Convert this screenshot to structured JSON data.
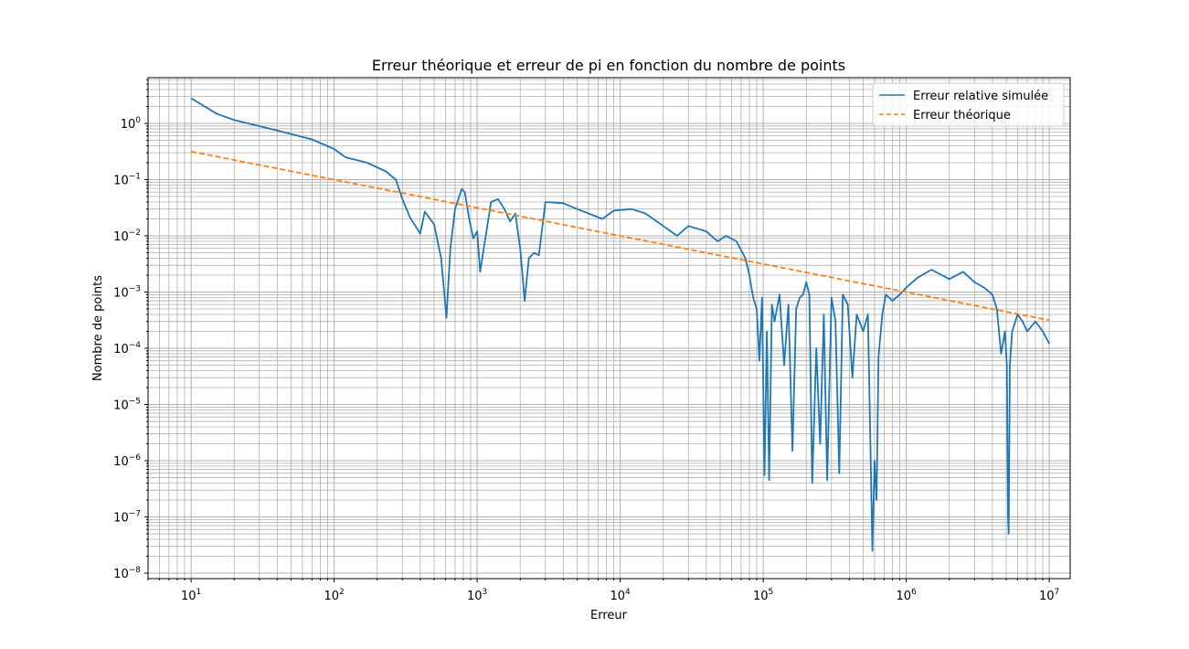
{
  "chart_data": {
    "type": "line",
    "title": "Erreur théorique et erreur de pi en fonction du nombre de points",
    "xlabel": "Erreur",
    "ylabel": "Nombre de points",
    "xscale": "log",
    "yscale": "log",
    "xlim": [
      5,
      14000000
    ],
    "ylim": [
      8e-09,
      6.5
    ],
    "grid": "major+minor",
    "legend_position": "upper-right",
    "x_ticks": [
      {
        "value": 10,
        "base": "10",
        "exp": "1"
      },
      {
        "value": 100,
        "base": "10",
        "exp": "2"
      },
      {
        "value": 1000,
        "base": "10",
        "exp": "3"
      },
      {
        "value": 10000,
        "base": "10",
        "exp": "4"
      },
      {
        "value": 100000,
        "base": "10",
        "exp": "5"
      },
      {
        "value": 1000000,
        "base": "10",
        "exp": "6"
      },
      {
        "value": 10000000,
        "base": "10",
        "exp": "7"
      }
    ],
    "y_ticks": [
      {
        "value": 1,
        "base": "10",
        "exp": "0"
      },
      {
        "value": 0.1,
        "base": "10",
        "exp": "−1"
      },
      {
        "value": 0.01,
        "base": "10",
        "exp": "−2"
      },
      {
        "value": 0.001,
        "base": "10",
        "exp": "−3"
      },
      {
        "value": 0.0001,
        "base": "10",
        "exp": "−4"
      },
      {
        "value": 1e-05,
        "base": "10",
        "exp": "−5"
      },
      {
        "value": 1e-06,
        "base": "10",
        "exp": "−6"
      },
      {
        "value": 1e-07,
        "base": "10",
        "exp": "−7"
      },
      {
        "value": 1e-08,
        "base": "10",
        "exp": "−8"
      }
    ],
    "series": [
      {
        "name": "Erreur relative simulée",
        "color": "#1f77b4",
        "style": "solid",
        "points": [
          [
            10,
            2.8
          ],
          [
            15,
            1.5
          ],
          [
            20,
            1.15
          ],
          [
            40,
            0.75
          ],
          [
            70,
            0.52
          ],
          [
            100,
            0.35
          ],
          [
            120,
            0.25
          ],
          [
            170,
            0.2
          ],
          [
            230,
            0.14
          ],
          [
            270,
            0.1
          ],
          [
            300,
            0.045
          ],
          [
            340,
            0.021
          ],
          [
            400,
            0.011
          ],
          [
            430,
            0.027
          ],
          [
            500,
            0.016
          ],
          [
            560,
            0.004
          ],
          [
            610,
            0.00035
          ],
          [
            650,
            0.006
          ],
          [
            700,
            0.03
          ],
          [
            780,
            0.068
          ],
          [
            820,
            0.06
          ],
          [
            880,
            0.02
          ],
          [
            940,
            0.009
          ],
          [
            1000,
            0.012
          ],
          [
            1050,
            0.0023
          ],
          [
            1100,
            0.005
          ],
          [
            1250,
            0.04
          ],
          [
            1400,
            0.045
          ],
          [
            1550,
            0.03
          ],
          [
            1700,
            0.018
          ],
          [
            1850,
            0.025
          ],
          [
            2000,
            0.006
          ],
          [
            2150,
            0.0007
          ],
          [
            2300,
            0.004
          ],
          [
            2500,
            0.005
          ],
          [
            2700,
            0.0045
          ],
          [
            3000,
            0.04
          ],
          [
            4000,
            0.038
          ],
          [
            5000,
            0.03
          ],
          [
            6000,
            0.025
          ],
          [
            7500,
            0.02
          ],
          [
            9000,
            0.028
          ],
          [
            12000,
            0.03
          ],
          [
            15000,
            0.025
          ],
          [
            20000,
            0.015
          ],
          [
            25000,
            0.01
          ],
          [
            30000,
            0.015
          ],
          [
            40000,
            0.012
          ],
          [
            48000,
            0.008
          ],
          [
            55000,
            0.01
          ],
          [
            65000,
            0.008
          ],
          [
            75000,
            0.004
          ],
          [
            80000,
            0.002
          ],
          [
            85000,
            0.0008
          ],
          [
            90000,
            0.0005
          ],
          [
            94000,
            6e-05
          ],
          [
            98000,
            0.0008
          ],
          [
            102000,
            5.5e-07
          ],
          [
            106000,
            0.0002
          ],
          [
            110000,
            4.5e-07
          ],
          [
            115000,
            0.0006
          ],
          [
            120000,
            0.0003
          ],
          [
            130000,
            0.0009
          ],
          [
            140000,
            5e-05
          ],
          [
            150000,
            0.0006
          ],
          [
            160000,
            1.5e-06
          ],
          [
            170000,
            0.0005
          ],
          [
            180000,
            0.0008
          ],
          [
            190000,
            0.0009
          ],
          [
            200000,
            0.0015
          ],
          [
            210000,
            0.0009
          ],
          [
            220000,
            4e-07
          ],
          [
            235000,
            0.0001
          ],
          [
            250000,
            2e-06
          ],
          [
            265000,
            0.0004
          ],
          [
            280000,
            4.5e-07
          ],
          [
            300000,
            0.0008
          ],
          [
            320000,
            0.0003
          ],
          [
            340000,
            6e-07
          ],
          [
            360000,
            0.0009
          ],
          [
            390000,
            0.0006
          ],
          [
            420000,
            3e-05
          ],
          [
            450000,
            0.0004
          ],
          [
            500000,
            0.0002
          ],
          [
            540000,
            0.0004
          ],
          [
            580000,
            2.5e-08
          ],
          [
            600000,
            1e-06
          ],
          [
            620000,
            2e-07
          ],
          [
            640000,
            7e-05
          ],
          [
            680000,
            0.0004
          ],
          [
            720000,
            0.0009
          ],
          [
            800000,
            0.0007
          ],
          [
            900000,
            0.0009
          ],
          [
            1000000,
            0.0012
          ],
          [
            1200000,
            0.0018
          ],
          [
            1500000,
            0.0025
          ],
          [
            2000000,
            0.0017
          ],
          [
            2500000,
            0.0023
          ],
          [
            3000000,
            0.0015
          ],
          [
            3500000,
            0.0012
          ],
          [
            4000000,
            0.0009
          ],
          [
            4300000,
            0.0005
          ],
          [
            4600000,
            8e-05
          ],
          [
            4900000,
            0.0002
          ],
          [
            5050000,
            5e-05
          ],
          [
            5150000,
            1e-07
          ],
          [
            5200000,
            5e-08
          ],
          [
            5300000,
            5e-05
          ],
          [
            5500000,
            0.0002
          ],
          [
            6000000,
            0.0004
          ],
          [
            6500000,
            0.0003
          ],
          [
            7000000,
            0.0002
          ],
          [
            8000000,
            0.0003
          ],
          [
            9000000,
            0.0002
          ],
          [
            10000000,
            0.00012
          ]
        ]
      },
      {
        "name": "Erreur théorique",
        "color": "#ff7f0e",
        "style": "dashed",
        "points": [
          [
            10,
            0.316
          ],
          [
            10000000,
            0.000316
          ]
        ]
      }
    ]
  }
}
